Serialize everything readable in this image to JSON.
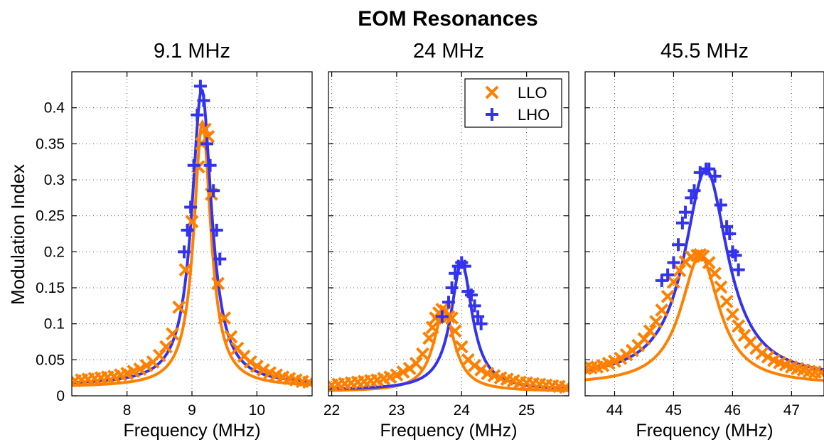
{
  "figure": {
    "title": "EOM Resonances",
    "ylabel": "Modulation Index"
  },
  "colors": {
    "LLO": "#ff8000",
    "LHO": "#3333ee",
    "grid": "#555555"
  },
  "chart_data": [
    {
      "type": "line",
      "title": "9.1 MHz",
      "xlabel": "Frequency (MHz)",
      "ylabel": "Modulation Index",
      "xlim": [
        7.15,
        10.85
      ],
      "ylim": [
        0,
        0.45
      ],
      "xticks": [
        8,
        9,
        10
      ],
      "yticks": [
        0,
        0.05,
        0.1,
        0.15,
        0.2,
        0.25,
        0.3,
        0.35,
        0.4
      ],
      "ytick_labels": [
        "0",
        "0.05",
        "0.1",
        "0.15",
        "0.2",
        "0.25",
        "0.3",
        "0.35",
        "0.4"
      ],
      "grid": true,
      "series": [
        {
          "name": "LLO",
          "marker": "x",
          "color": "#ff8000",
          "fit": {
            "f0": 9.16,
            "peak": 0.38,
            "gamma": 0.16,
            "offset": 0.012
          },
          "x": [
            7.2,
            7.3,
            7.4,
            7.5,
            7.6,
            7.7,
            7.8,
            7.9,
            8.0,
            8.1,
            8.2,
            8.3,
            8.4,
            8.5,
            8.6,
            8.7,
            8.8,
            8.9,
            9.0,
            9.1,
            9.15,
            9.2,
            9.25,
            9.3,
            9.4,
            9.5,
            9.6,
            9.7,
            9.8,
            9.9,
            10.0,
            10.1,
            10.2,
            10.3,
            10.4,
            10.5,
            10.6,
            10.7,
            10.8
          ],
          "y": [
            0.021,
            0.022,
            0.023,
            0.024,
            0.025,
            0.026,
            0.027,
            0.029,
            0.031,
            0.034,
            0.037,
            0.042,
            0.047,
            0.056,
            0.068,
            0.086,
            0.123,
            0.175,
            0.242,
            0.318,
            0.35,
            0.37,
            0.36,
            0.28,
            0.156,
            0.108,
            0.082,
            0.066,
            0.055,
            0.047,
            0.041,
            0.036,
            0.032,
            0.029,
            0.026,
            0.024,
            0.022,
            0.02,
            0.019
          ]
        },
        {
          "name": "LHO",
          "marker": "+",
          "color": "#3333ee",
          "fit": {
            "f0": 9.15,
            "peak": 0.425,
            "gamma": 0.185,
            "offset": 0.015
          },
          "x": [
            8.88,
            8.93,
            8.98,
            9.03,
            9.08,
            9.13,
            9.18,
            9.23,
            9.28,
            9.33,
            9.38,
            9.43
          ],
          "y": [
            0.2,
            0.23,
            0.262,
            0.32,
            0.39,
            0.43,
            0.41,
            0.35,
            0.32,
            0.285,
            0.23,
            0.19
          ]
        }
      ]
    },
    {
      "type": "line",
      "title": "24 MHz",
      "xlabel": "Frequency (MHz)",
      "ylabel": "",
      "xlim": [
        21.95,
        25.65
      ],
      "ylim": [
        0,
        0.45
      ],
      "xticks": [
        22,
        23,
        24,
        25
      ],
      "yticks": [
        0,
        0.05,
        0.1,
        0.15,
        0.2,
        0.25,
        0.3,
        0.35,
        0.4
      ],
      "ytick_labels": [],
      "grid": true,
      "legend": {
        "position": "top-right"
      },
      "series": [
        {
          "name": "LLO",
          "marker": "x",
          "color": "#ff8000",
          "fit": {
            "f0": 23.73,
            "peak": 0.118,
            "gamma": 0.2,
            "offset": 0.006
          },
          "x": [
            22.0,
            22.1,
            22.2,
            22.3,
            22.4,
            22.5,
            22.6,
            22.7,
            22.8,
            22.9,
            23.0,
            23.1,
            23.2,
            23.3,
            23.4,
            23.5,
            23.55,
            23.6,
            23.65,
            23.7,
            23.75,
            23.8,
            23.85,
            23.9,
            24.0,
            24.1,
            24.2,
            24.3,
            24.4,
            24.5,
            24.6,
            24.7,
            24.8,
            24.9,
            25.0,
            25.1,
            25.2,
            25.3,
            25.4,
            25.5,
            25.6
          ],
          "y": [
            0.015,
            0.016,
            0.017,
            0.018,
            0.019,
            0.02,
            0.021,
            0.022,
            0.024,
            0.026,
            0.029,
            0.033,
            0.038,
            0.045,
            0.058,
            0.08,
            0.095,
            0.108,
            0.115,
            0.12,
            0.118,
            0.11,
            0.108,
            0.09,
            0.068,
            0.05,
            0.042,
            0.036,
            0.031,
            0.028,
            0.025,
            0.023,
            0.021,
            0.019,
            0.018,
            0.017,
            0.016,
            0.015,
            0.014,
            0.013,
            0.012
          ]
        },
        {
          "name": "LHO",
          "marker": "+",
          "color": "#3333ee",
          "fit": {
            "f0": 24.0,
            "peak": 0.185,
            "gamma": 0.2,
            "offset": 0.008
          },
          "x": [
            23.7,
            23.8,
            23.85,
            23.9,
            23.95,
            24.0,
            24.05,
            24.1,
            24.15,
            24.2,
            24.25,
            24.3
          ],
          "y": [
            0.11,
            0.13,
            0.15,
            0.17,
            0.18,
            0.185,
            0.18,
            0.145,
            0.14,
            0.125,
            0.11,
            0.1
          ]
        }
      ]
    },
    {
      "type": "line",
      "title": "45.5 MHz",
      "xlabel": "Frequency (MHz)",
      "ylabel": "",
      "xlim": [
        43.5,
        47.55
      ],
      "ylim": [
        0,
        0.45
      ],
      "xticks": [
        44,
        45,
        46,
        47
      ],
      "yticks": [
        0,
        0.05,
        0.1,
        0.15,
        0.2,
        0.25,
        0.3,
        0.35,
        0.4
      ],
      "ytick_labels": [],
      "grid": true,
      "series": [
        {
          "name": "LLO",
          "marker": "x",
          "color": "#ff8000",
          "fit": {
            "f0": 45.45,
            "peak": 0.194,
            "gamma": 0.4,
            "offset": 0.015
          },
          "x": [
            43.5,
            43.6,
            43.7,
            43.8,
            43.9,
            44.0,
            44.1,
            44.2,
            44.3,
            44.4,
            44.5,
            44.6,
            44.7,
            44.8,
            44.9,
            45.0,
            45.1,
            45.2,
            45.3,
            45.4,
            45.45,
            45.5,
            45.6,
            45.7,
            45.8,
            45.9,
            46.0,
            46.1,
            46.2,
            46.3,
            46.4,
            46.5,
            46.6,
            46.7,
            46.8,
            46.9,
            47.0,
            47.1,
            47.2,
            47.3,
            47.4,
            47.5
          ],
          "y": [
            0.038,
            0.039,
            0.04,
            0.042,
            0.045,
            0.048,
            0.052,
            0.057,
            0.063,
            0.07,
            0.079,
            0.09,
            0.103,
            0.119,
            0.138,
            0.158,
            0.174,
            0.186,
            0.193,
            0.195,
            0.196,
            0.194,
            0.185,
            0.17,
            0.151,
            0.131,
            0.113,
            0.097,
            0.084,
            0.074,
            0.066,
            0.059,
            0.054,
            0.049,
            0.046,
            0.043,
            0.04,
            0.038,
            0.036,
            0.034,
            0.033,
            0.032
          ]
        },
        {
          "name": "LHO",
          "marker": "+",
          "color": "#3333ee",
          "fit": {
            "f0": 45.55,
            "peak": 0.314,
            "gamma": 0.45,
            "offset": 0.022
          },
          "x": [
            44.8,
            44.9,
            45.0,
            45.08,
            45.15,
            45.2,
            45.3,
            45.35,
            45.45,
            45.55,
            45.6,
            45.7,
            45.8,
            45.9,
            45.95,
            46.0,
            46.05,
            46.1
          ],
          "y": [
            0.16,
            0.168,
            0.185,
            0.21,
            0.24,
            0.255,
            0.275,
            0.285,
            0.31,
            0.315,
            0.315,
            0.305,
            0.265,
            0.235,
            0.225,
            0.2,
            0.195,
            0.175
          ]
        }
      ]
    }
  ]
}
